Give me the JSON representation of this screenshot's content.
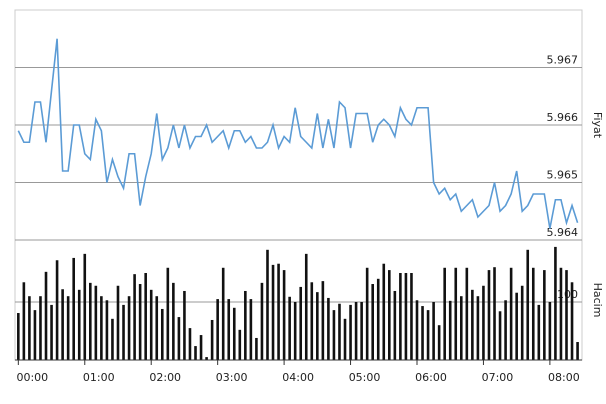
{
  "chart_data": [
    {
      "type": "line",
      "ylabel": "Fiyat",
      "color": "#5b9bd5",
      "x": [
        0,
        5,
        10,
        15,
        20,
        25,
        30,
        35,
        40,
        45,
        50,
        55,
        60,
        65,
        70,
        75,
        80,
        85,
        90,
        95,
        100,
        105,
        110,
        115,
        120,
        125,
        130,
        135,
        140,
        145,
        150,
        155,
        160,
        165,
        170,
        175,
        180,
        185,
        190,
        195,
        200,
        205,
        210,
        215,
        220,
        225,
        230,
        235,
        240,
        245,
        250,
        255,
        260,
        265,
        270,
        275,
        280,
        285,
        290,
        295,
        300,
        305,
        310,
        315,
        320,
        325,
        330,
        335,
        340,
        345,
        350,
        355,
        360,
        365,
        370,
        375,
        380,
        385,
        390,
        395,
        400,
        405,
        410,
        415,
        420,
        425,
        430,
        435,
        440,
        445,
        450,
        455,
        460,
        465,
        470,
        475,
        480,
        485,
        490,
        495,
        500,
        505
      ],
      "values": [
        5.9659,
        5.9657,
        5.9657,
        5.9664,
        5.9664,
        5.9657,
        5.9666,
        5.9675,
        5.9652,
        5.9652,
        5.966,
        5.966,
        5.9655,
        5.9654,
        5.9661,
        5.9659,
        5.965,
        5.9654,
        5.9651,
        5.9649,
        5.9655,
        5.9655,
        5.9646,
        5.9651,
        5.9655,
        5.9662,
        5.9654,
        5.9656,
        5.966,
        5.9656,
        5.966,
        5.9656,
        5.9658,
        5.9658,
        5.966,
        5.9657,
        5.9658,
        5.9659,
        5.9656,
        5.9659,
        5.9659,
        5.9657,
        5.9658,
        5.9656,
        5.9656,
        5.9657,
        5.966,
        5.9656,
        5.9658,
        5.9657,
        5.9663,
        5.9658,
        5.9657,
        5.9656,
        5.9662,
        5.9656,
        5.9661,
        5.9656,
        5.9664,
        5.9663,
        5.9656,
        5.9662,
        5.9662,
        5.9662,
        5.9657,
        5.966,
        5.9661,
        5.966,
        5.9658,
        5.9663,
        5.9661,
        5.966,
        5.9663,
        5.9663,
        5.9663,
        5.965,
        5.9648,
        5.9649,
        5.9647,
        5.9648,
        5.9645,
        5.9646,
        5.9647,
        5.9644,
        5.9645,
        5.9646,
        5.965,
        5.9645,
        5.9646,
        5.9648,
        5.9652,
        5.9645,
        5.9646,
        5.9648,
        5.9648,
        5.9648,
        5.9642,
        5.9647,
        5.9647,
        5.9643,
        5.9646,
        5.9643
      ],
      "xlim": [
        -3,
        509
      ],
      "ylim": [
        5.964,
        5.968
      ],
      "yticks": [
        5.964,
        5.965,
        5.966,
        5.967
      ],
      "grid": true
    },
    {
      "type": "bar",
      "ylabel": "Hacim",
      "color": "#111111",
      "x": [
        0,
        5,
        10,
        15,
        20,
        25,
        30,
        35,
        40,
        45,
        50,
        55,
        60,
        65,
        70,
        75,
        80,
        85,
        90,
        95,
        100,
        105,
        110,
        115,
        120,
        125,
        130,
        135,
        140,
        145,
        150,
        155,
        160,
        165,
        170,
        175,
        180,
        185,
        190,
        195,
        200,
        205,
        210,
        215,
        220,
        225,
        230,
        235,
        240,
        245,
        250,
        255,
        260,
        265,
        270,
        275,
        280,
        285,
        290,
        295,
        300,
        305,
        310,
        315,
        320,
        325,
        330,
        335,
        340,
        345,
        350,
        355,
        360,
        365,
        370,
        375,
        380,
        385,
        390,
        395,
        400,
        405,
        410,
        415,
        420,
        425,
        430,
        435,
        440,
        445,
        450,
        455,
        460,
        465,
        470,
        475,
        480,
        485,
        490,
        495,
        500,
        505
      ],
      "values": [
        81,
        134,
        110,
        86,
        110,
        152,
        95,
        172,
        122,
        110,
        176,
        121,
        183,
        133,
        128,
        110,
        103,
        71,
        128,
        95,
        110,
        148,
        131,
        150,
        121,
        110,
        88,
        159,
        133,
        74,
        119,
        55,
        24,
        43,
        5,
        69,
        105,
        159,
        105,
        90,
        52,
        119,
        105,
        38,
        133,
        190,
        164,
        166,
        155,
        109,
        100,
        126,
        183,
        134,
        117,
        136,
        107,
        86,
        97,
        71,
        95,
        100,
        100,
        159,
        131,
        140,
        166,
        155,
        119,
        150,
        150,
        150,
        103,
        93,
        86,
        100,
        60,
        159,
        102,
        159,
        110,
        159,
        121,
        110,
        128,
        155,
        160,
        84,
        103,
        159,
        116,
        128,
        190,
        159,
        95,
        155,
        100,
        195,
        159,
        155,
        134,
        31
      ],
      "xlim": [
        -3,
        509
      ],
      "ylim": [
        0,
        200
      ],
      "yticks": [
        100
      ],
      "grid": true,
      "xticks": [
        {
          "value": 0,
          "label": "00:00"
        },
        {
          "value": 60,
          "label": "01:00"
        },
        {
          "value": 120,
          "label": "02:00"
        },
        {
          "value": 180,
          "label": "03:00"
        },
        {
          "value": 240,
          "label": "04:00"
        },
        {
          "value": 300,
          "label": "05:00"
        },
        {
          "value": 360,
          "label": "06:00"
        },
        {
          "value": 420,
          "label": "07:00"
        },
        {
          "value": 480,
          "label": "08:00"
        }
      ]
    }
  ]
}
